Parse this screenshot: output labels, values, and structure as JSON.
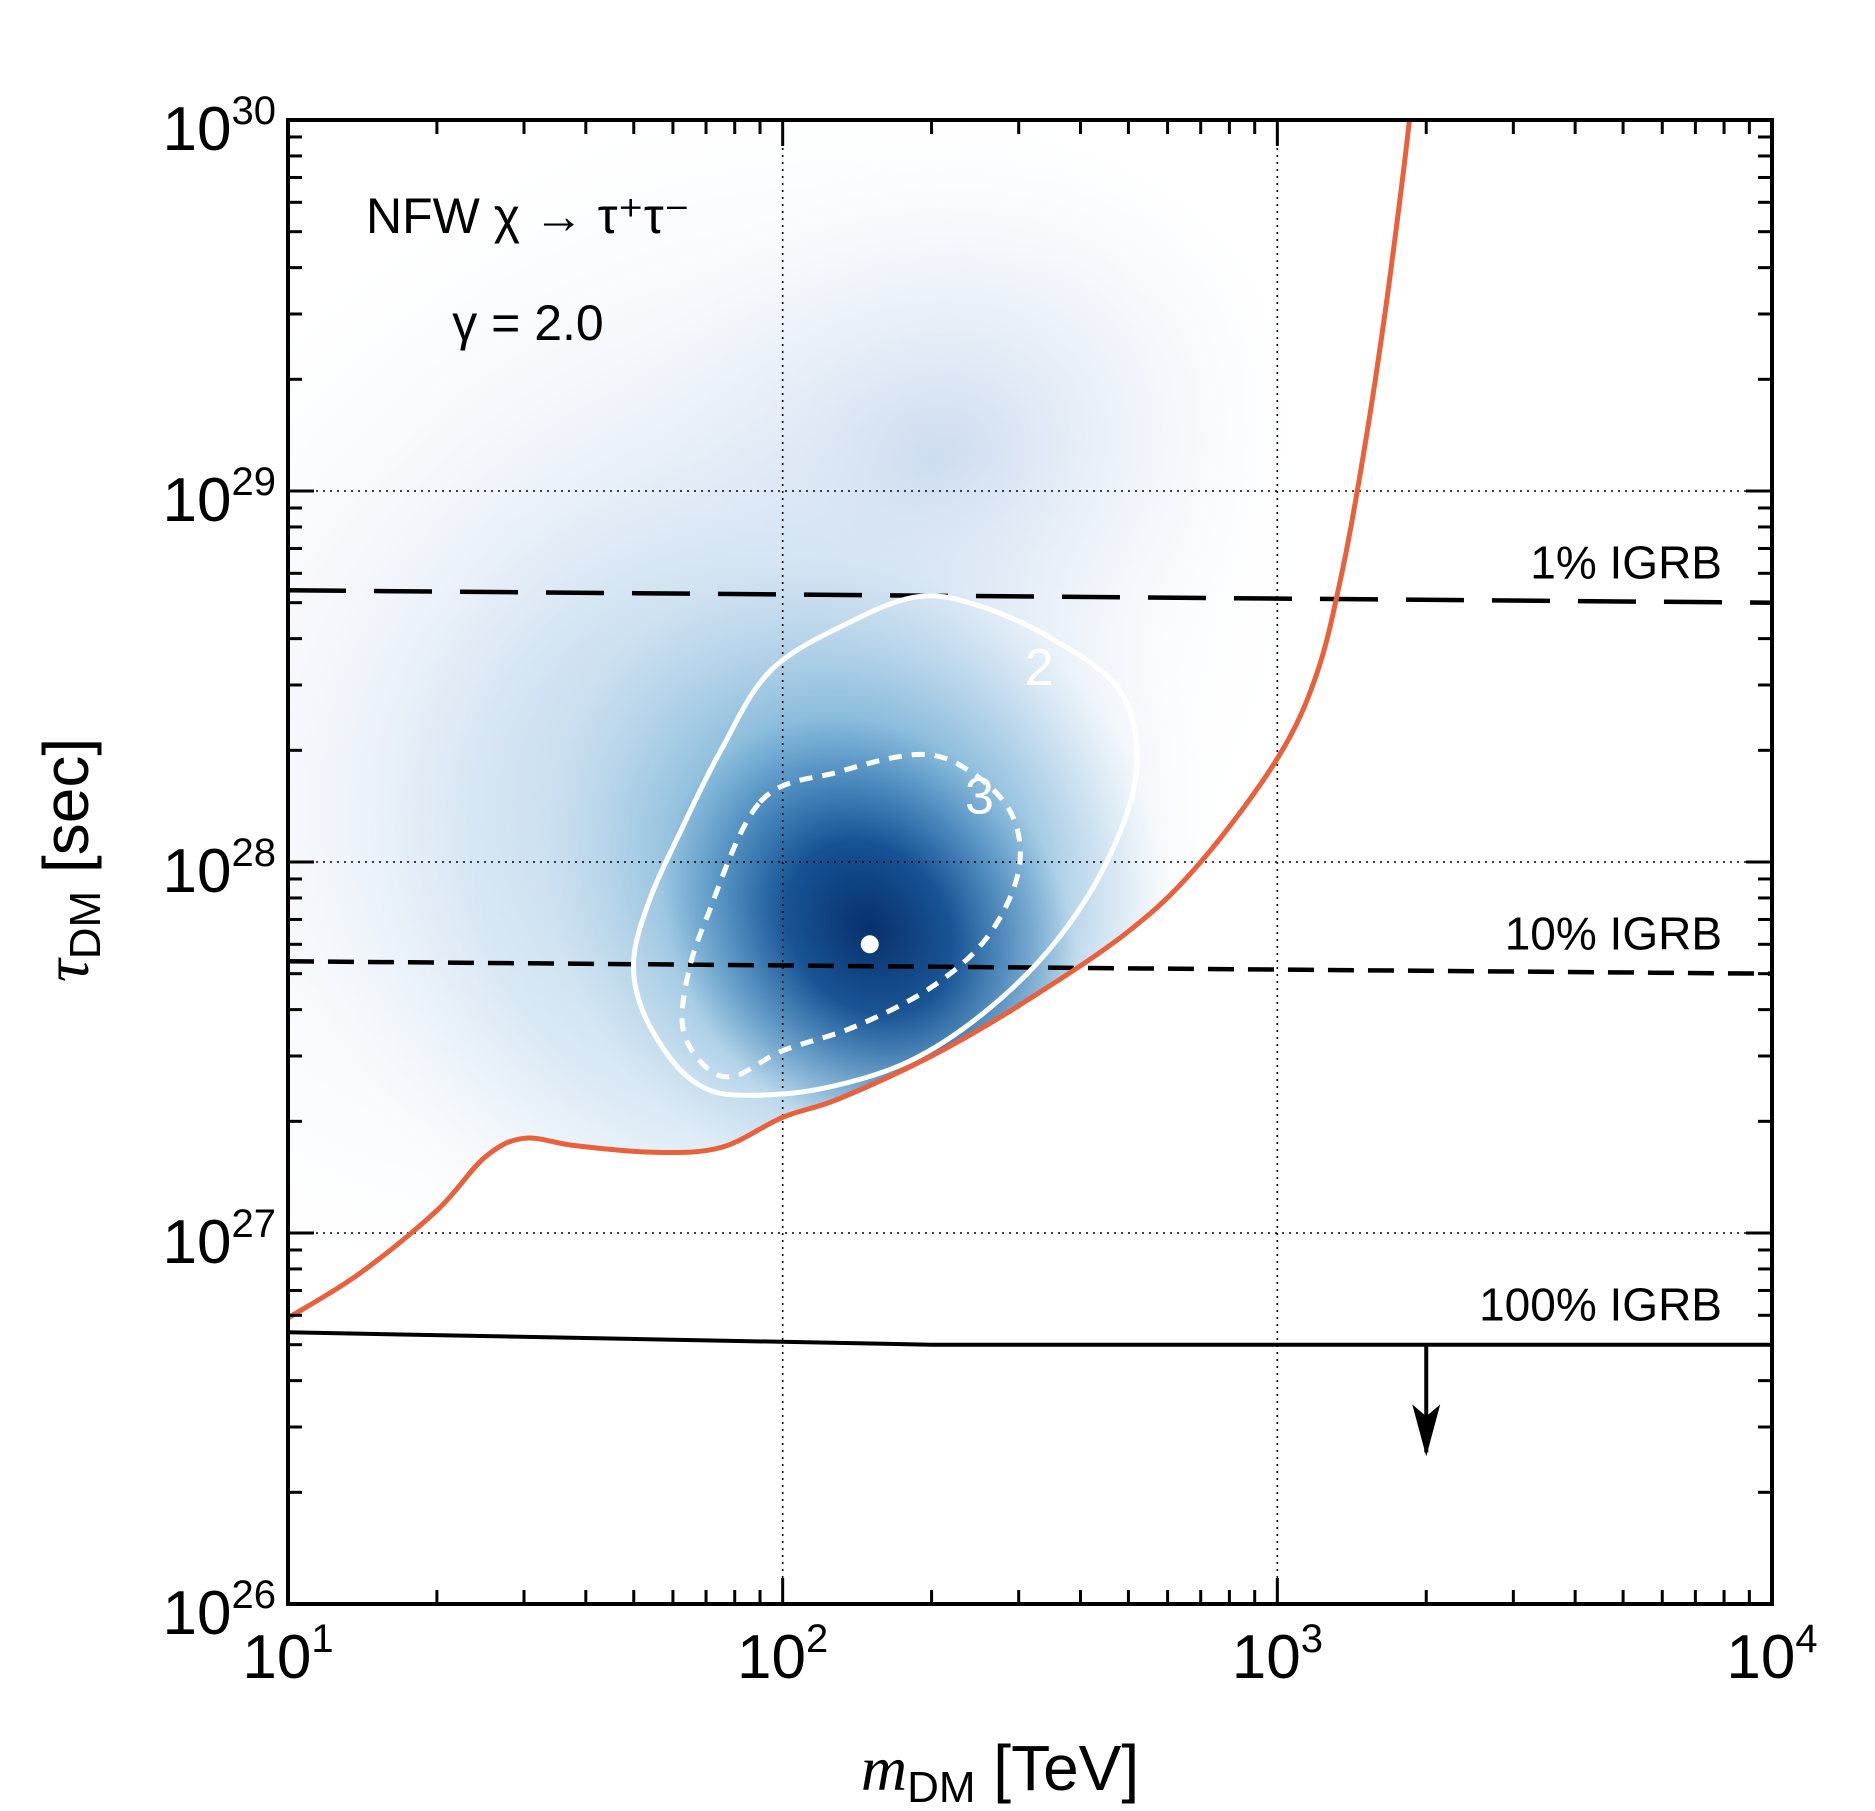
{
  "chart_data": {
    "type": "heatmap",
    "x_scale": "log",
    "y_scale": "log",
    "xlim": [
      10,
      10000
    ],
    "ylim": [
      1e+26,
      1e+30
    ],
    "x_ticks": [
      {
        "value": 10,
        "base": "10",
        "exp": "1"
      },
      {
        "value": 100,
        "base": "10",
        "exp": "2"
      },
      {
        "value": 1000,
        "base": "10",
        "exp": "3"
      },
      {
        "value": 10000,
        "base": "10",
        "exp": "4"
      }
    ],
    "y_ticks": [
      {
        "value": 1e+26,
        "base": "10",
        "exp": "26"
      },
      {
        "value": 1e+27,
        "base": "10",
        "exp": "27"
      },
      {
        "value": 1e+28,
        "base": "10",
        "exp": "28"
      },
      {
        "value": 1e+29,
        "base": "10",
        "exp": "29"
      },
      {
        "value": 1e+30,
        "base": "10",
        "exp": "30"
      }
    ],
    "xlabel": {
      "main": "m",
      "sub": "DM",
      "unit": " [TeV]"
    },
    "ylabel": {
      "main": "τ",
      "sub": "DM",
      "unit": " [sec]"
    },
    "annotation": {
      "line1": "NFW χ → τ⁺τ⁻",
      "line2": "γ = 2.0"
    },
    "grid": true,
    "colors": {
      "limit": "#e8613c",
      "density_dark": "#08306b",
      "density_mid": "#2f7ab8",
      "density_light": "#9ecae1",
      "contour": "#ffffff",
      "reference_lines": "#000000"
    },
    "best_fit": {
      "x": 150,
      "y": 6e+27
    },
    "density_peak": {
      "x": 150,
      "y": 6e+27
    },
    "reference_lines": [
      {
        "label": "1% IGRB",
        "style": "long-dash",
        "points": [
          [
            10,
            5.4e+28
          ],
          [
            10000,
            5e+28
          ]
        ]
      },
      {
        "label": "10% IGRB",
        "style": "dash",
        "points": [
          [
            10,
            5.4e+27
          ],
          [
            10000,
            5e+27
          ]
        ]
      },
      {
        "label": "100% IGRB",
        "style": "solid",
        "points": [
          [
            10,
            5.4e+26
          ],
          [
            200,
            5e+26
          ],
          [
            10000,
            5e+26
          ]
        ]
      }
    ],
    "arrow": {
      "x": 2000,
      "y_from": 5e+26,
      "y_to": 2.5e+26
    },
    "limit_curve": [
      [
        10,
        5.9e+26
      ],
      [
        14,
        7.8e+26
      ],
      [
        20,
        1.15e+27
      ],
      [
        25,
        1.6e+27
      ],
      [
        30,
        1.8e+27
      ],
      [
        38,
        1.72e+27
      ],
      [
        55,
        1.65e+27
      ],
      [
        75,
        1.7e+27
      ],
      [
        100,
        2.05e+27
      ],
      [
        130,
        2.3e+27
      ],
      [
        200,
        3e+27
      ],
      [
        300,
        4.1e+27
      ],
      [
        500,
        6.5e+27
      ],
      [
        700,
        1e+28
      ],
      [
        1000,
        1.9e+28
      ],
      [
        1200,
        3.2e+28
      ],
      [
        1350,
        6e+28
      ],
      [
        1500,
        1.3e+29
      ],
      [
        1650,
        3e+29
      ],
      [
        1780,
        6.5e+29
      ],
      [
        1850,
        1e+30
      ]
    ],
    "contours": [
      {
        "label": "2",
        "style": "solid",
        "points": [
          [
            95,
            3.3e+28
          ],
          [
            140,
            4.5e+28
          ],
          [
            190,
            5.2e+28
          ],
          [
            250,
            4.9e+28
          ],
          [
            350,
            4e+28
          ],
          [
            480,
            2.9e+28
          ],
          [
            520,
            1.8e+28
          ],
          [
            460,
            1.05e+28
          ],
          [
            360,
            6.2e+27
          ],
          [
            260,
            4e+27
          ],
          [
            180,
            2.9e+27
          ],
          [
            120,
            2.45e+27
          ],
          [
            85,
            2.35e+27
          ],
          [
            70,
            2.45e+27
          ],
          [
            60,
            2.9e+27
          ],
          [
            52,
            4e+27
          ],
          [
            50,
            5.5e+27
          ],
          [
            54,
            8e+27
          ],
          [
            62,
            1.2e+28
          ],
          [
            75,
            2e+28
          ],
          [
            95,
            3.3e+28
          ]
        ]
      },
      {
        "label": "3",
        "style": "dotted",
        "points": [
          [
            90,
            1.45e+28
          ],
          [
            130,
            1.75e+28
          ],
          [
            190,
            1.95e+28
          ],
          [
            240,
            1.75e+28
          ],
          [
            290,
            1.35e+28
          ],
          [
            300,
            9.5e+27
          ],
          [
            260,
            6.3e+27
          ],
          [
            200,
            4.6e+27
          ],
          [
            140,
            3.6e+27
          ],
          [
            100,
            3.1e+27
          ],
          [
            80,
            2.65e+27
          ],
          [
            70,
            2.8e+27
          ],
          [
            63,
            3.5e+27
          ],
          [
            64,
            4.8e+27
          ],
          [
            70,
            7e+27
          ],
          [
            90,
            1.45e+28
          ]
        ]
      }
    ]
  }
}
